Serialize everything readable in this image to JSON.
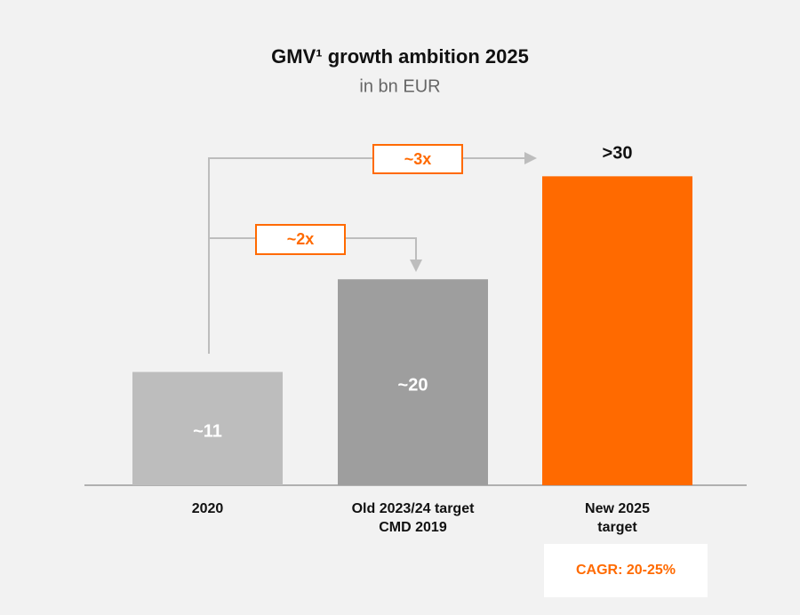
{
  "chart_data": {
    "type": "bar",
    "title": "GMV¹ growth ambition 2025",
    "subtitle": "in bn EUR",
    "categories": [
      "2020",
      "Old 2023/24 target\nCMD 2019",
      "New 2025\ntarget"
    ],
    "values": [
      11,
      20,
      30
    ],
    "value_labels": [
      "~11",
      "~20",
      ">30"
    ],
    "colors": [
      "#bdbdbd",
      "#9e9e9e",
      "#ff6a00"
    ],
    "ylim": [
      0,
      34
    ],
    "annotations": [
      "~3x",
      "~2x",
      "CAGR: 20-25%"
    ]
  }
}
